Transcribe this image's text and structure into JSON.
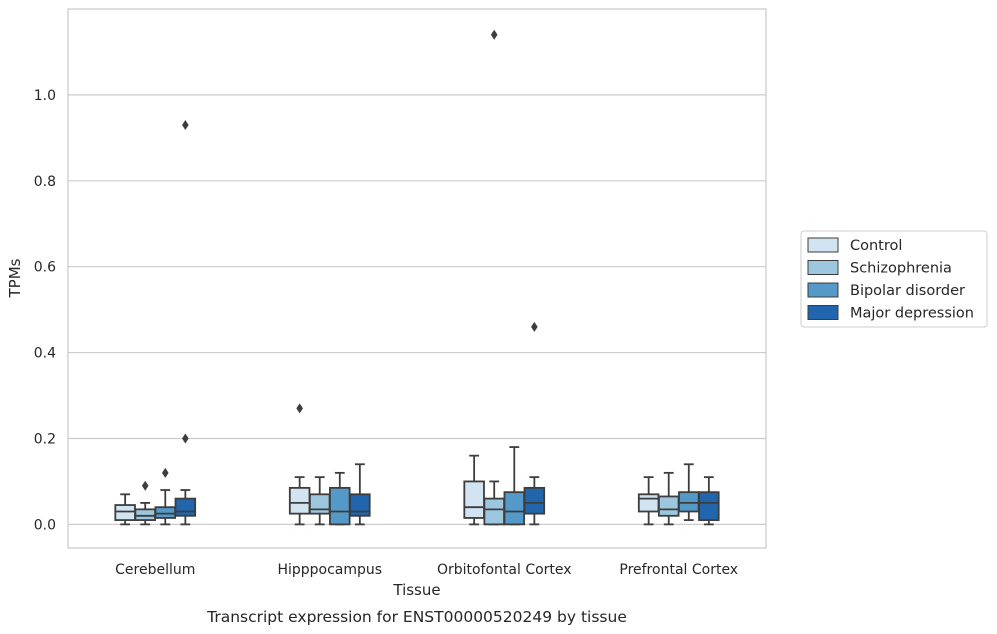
{
  "chart_data": {
    "type": "box",
    "caption": "Transcript expression for ENST00000520249 by tissue",
    "xlabel": "Tissue",
    "ylabel": "TPMs",
    "ylim": [
      -0.055,
      1.2
    ],
    "yticks": [
      0.0,
      0.2,
      0.4,
      0.6,
      0.8,
      1.0
    ],
    "ytick_labels": [
      "0.0",
      "0.2",
      "0.4",
      "0.6",
      "0.8",
      "1.0"
    ],
    "grid": "horizontal",
    "legend_position": "right",
    "categories": [
      "Cerebellum",
      "Hipppocampus",
      "Orbitofontal Cortex",
      "Prefrontal Cortex"
    ],
    "series": [
      {
        "name": "Control",
        "color": "#d2e3f2",
        "boxes": [
          {
            "whislo": 0.0,
            "q1": 0.01,
            "med": 0.03,
            "q3": 0.045,
            "whishi": 0.07,
            "fliers": []
          },
          {
            "whislo": 0.0,
            "q1": 0.025,
            "med": 0.05,
            "q3": 0.085,
            "whishi": 0.11,
            "fliers": [
              0.27
            ]
          },
          {
            "whislo": 0.0,
            "q1": 0.015,
            "med": 0.04,
            "q3": 0.1,
            "whishi": 0.16,
            "fliers": []
          },
          {
            "whislo": 0.0,
            "q1": 0.03,
            "med": 0.06,
            "q3": 0.07,
            "whishi": 0.11,
            "fliers": []
          }
        ]
      },
      {
        "name": "Schizophrenia",
        "color": "#9dc7df",
        "boxes": [
          {
            "whislo": 0.0,
            "q1": 0.01,
            "med": 0.02,
            "q3": 0.035,
            "whishi": 0.05,
            "fliers": [
              0.09
            ]
          },
          {
            "whislo": 0.0,
            "q1": 0.025,
            "med": 0.035,
            "q3": 0.07,
            "whishi": 0.11,
            "fliers": []
          },
          {
            "whislo": 0.0,
            "q1": 0.0,
            "med": 0.035,
            "q3": 0.06,
            "whishi": 0.1,
            "fliers": [
              1.14
            ]
          },
          {
            "whislo": 0.0,
            "q1": 0.02,
            "med": 0.035,
            "q3": 0.065,
            "whishi": 0.12,
            "fliers": []
          }
        ]
      },
      {
        "name": "Bipolar disorder",
        "color": "#5599c8",
        "boxes": [
          {
            "whislo": 0.0,
            "q1": 0.015,
            "med": 0.025,
            "q3": 0.04,
            "whishi": 0.08,
            "fliers": [
              0.12
            ]
          },
          {
            "whislo": 0.0,
            "q1": 0.0,
            "med": 0.03,
            "q3": 0.085,
            "whishi": 0.12,
            "fliers": []
          },
          {
            "whislo": 0.0,
            "q1": 0.0,
            "med": 0.03,
            "q3": 0.075,
            "whishi": 0.18,
            "fliers": []
          },
          {
            "whislo": 0.01,
            "q1": 0.03,
            "med": 0.05,
            "q3": 0.075,
            "whishi": 0.14,
            "fliers": []
          }
        ]
      },
      {
        "name": "Major depression",
        "color": "#2166ac",
        "boxes": [
          {
            "whislo": 0.0,
            "q1": 0.02,
            "med": 0.03,
            "q3": 0.06,
            "whishi": 0.08,
            "fliers": [
              0.2,
              0.93
            ]
          },
          {
            "whislo": 0.0,
            "q1": 0.02,
            "med": 0.03,
            "q3": 0.07,
            "whishi": 0.14,
            "fliers": []
          },
          {
            "whislo": 0.0,
            "q1": 0.025,
            "med": 0.05,
            "q3": 0.085,
            "whishi": 0.11,
            "fliers": [
              0.46
            ]
          },
          {
            "whislo": 0.0,
            "q1": 0.01,
            "med": 0.05,
            "q3": 0.075,
            "whishi": 0.11,
            "fliers": []
          }
        ]
      }
    ]
  }
}
